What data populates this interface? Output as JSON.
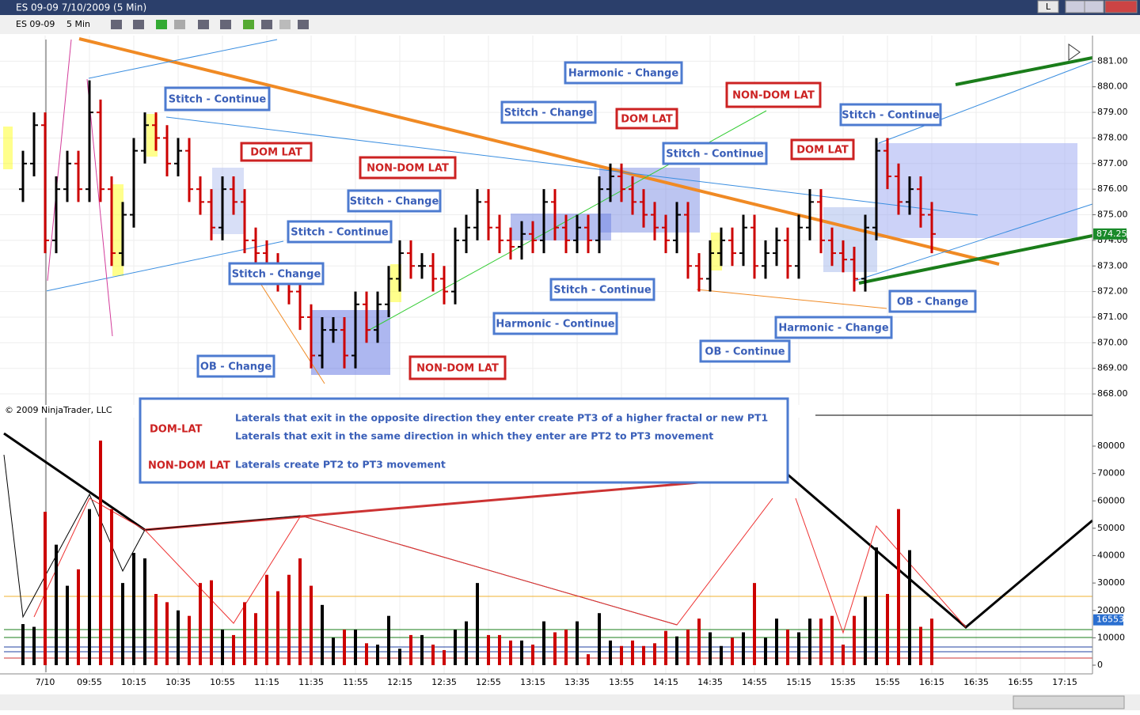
{
  "window": {
    "title": "ES 09-09  7/10/2009 (5 Min)",
    "button": "L"
  },
  "toolbar": {
    "instrument": "ES 09-09",
    "interval": "5 Min"
  },
  "copyright": "© 2009 NinjaTrader, LLC",
  "chart_data": [
    {
      "type": "ohlc",
      "up_color": "#000000",
      "down_color": "#cc0000",
      "ylim": [
        867.6,
        882
      ],
      "yticks": [
        {
          "value": 881,
          "label": "881.00"
        },
        {
          "value": 880,
          "label": "880.00"
        },
        {
          "value": 879,
          "label": "879.00"
        },
        {
          "value": 878,
          "label": "878.00"
        },
        {
          "value": 877,
          "label": "877.00"
        },
        {
          "value": 876,
          "label": "876.00"
        },
        {
          "value": 875,
          "label": "875.00"
        },
        {
          "value": 874,
          "label": "874.00"
        },
        {
          "value": 873,
          "label": "873.00"
        },
        {
          "value": 872,
          "label": "872.00"
        },
        {
          "value": 871,
          "label": "871.00"
        },
        {
          "value": 870,
          "label": "870.00"
        },
        {
          "value": 869,
          "label": "869.00"
        },
        {
          "value": 868,
          "label": "868.00"
        }
      ],
      "last_value": 874.25,
      "ohlc": [
        [
          876,
          877.5,
          875.5,
          877
        ],
        [
          877,
          879,
          876.5,
          878.5
        ],
        [
          878.5,
          879,
          873.5,
          874
        ],
        [
          874,
          876.5,
          873.5,
          876
        ],
        [
          876,
          877.5,
          875.5,
          877
        ],
        [
          877,
          877.5,
          875.5,
          876
        ],
        [
          876,
          880.25,
          875.5,
          879
        ],
        [
          879,
          879.5,
          875.5,
          876
        ],
        [
          876,
          876.5,
          873,
          873.5
        ],
        [
          873.5,
          875.5,
          873,
          875
        ],
        [
          875,
          878,
          874.5,
          877.5
        ],
        [
          877.5,
          879,
          877,
          878.5
        ],
        [
          878.5,
          879,
          877.5,
          878
        ],
        [
          878,
          878.5,
          876.5,
          877
        ],
        [
          877,
          878,
          876.5,
          877.5
        ],
        [
          877.5,
          878,
          875.5,
          876
        ],
        [
          876,
          876.5,
          875,
          875.5
        ],
        [
          875.5,
          876,
          874,
          874.5
        ],
        [
          874.5,
          876.5,
          874,
          876
        ],
        [
          876,
          876.5,
          875,
          875.5
        ],
        [
          875.5,
          876,
          873.5,
          874
        ],
        [
          874,
          874.5,
          873,
          873.5
        ],
        [
          873.5,
          874,
          872.5,
          873
        ],
        [
          873,
          873.5,
          872,
          872.5
        ],
        [
          872.5,
          873,
          871.5,
          872
        ],
        [
          872,
          872.5,
          870.5,
          871
        ],
        [
          871,
          871.5,
          869,
          869.5
        ],
        [
          869.5,
          871,
          869,
          870.5
        ],
        [
          870.5,
          871,
          870,
          870.5
        ],
        [
          870.5,
          871,
          869,
          869.5
        ],
        [
          869.5,
          872,
          869,
          871.5
        ],
        [
          871.5,
          872,
          870,
          870.5
        ],
        [
          870.5,
          872,
          870,
          871.5
        ],
        [
          871.5,
          873,
          871,
          872.5
        ],
        [
          872.5,
          874,
          872,
          873.5
        ],
        [
          873.5,
          874,
          872.5,
          873
        ],
        [
          873,
          873.5,
          872.5,
          873
        ],
        [
          873,
          873.5,
          872,
          872.5
        ],
        [
          872.5,
          873,
          871.5,
          872
        ],
        [
          872,
          874.5,
          871.5,
          874
        ],
        [
          874,
          875,
          873.5,
          874.5
        ],
        [
          874.5,
          876,
          874,
          875.5
        ],
        [
          875.5,
          876,
          874,
          874.5
        ],
        [
          874.5,
          875,
          873.5,
          874
        ],
        [
          874,
          874.5,
          873.25,
          873.75
        ],
        [
          873.75,
          874.75,
          873.25,
          874.25
        ],
        [
          874.25,
          874.75,
          873.5,
          874
        ],
        [
          874,
          876,
          873.5,
          875.5
        ],
        [
          875.5,
          876,
          874,
          874.5
        ],
        [
          874.5,
          875,
          873.5,
          874
        ],
        [
          874,
          875,
          873.5,
          874.5
        ],
        [
          874.5,
          875,
          873.5,
          874
        ],
        [
          874,
          876.5,
          873.5,
          876
        ],
        [
          876,
          877,
          875.5,
          876.5
        ],
        [
          876.5,
          877,
          875.5,
          876
        ],
        [
          876,
          876.5,
          875,
          875.5
        ],
        [
          875.5,
          876,
          874.5,
          875
        ],
        [
          875,
          875.5,
          874,
          874.5
        ],
        [
          874.5,
          875,
          873.5,
          874
        ],
        [
          874,
          875.5,
          873.5,
          875
        ],
        [
          875,
          875.5,
          872.5,
          873
        ],
        [
          873,
          873.5,
          872,
          872.5
        ],
        [
          872.5,
          874,
          872,
          873.5
        ],
        [
          873.5,
          874.5,
          873,
          874
        ],
        [
          874,
          874.5,
          873,
          873.5
        ],
        [
          873.5,
          875,
          873,
          874.5
        ],
        [
          874.5,
          875,
          872.5,
          873
        ],
        [
          873,
          874,
          872.5,
          873.5
        ],
        [
          873.5,
          874.5,
          873,
          874
        ],
        [
          874,
          874.5,
          872.5,
          873
        ],
        [
          873,
          875,
          872.5,
          874.5
        ],
        [
          874.5,
          876,
          874,
          875.5
        ],
        [
          875.5,
          876,
          873.5,
          874
        ],
        [
          874,
          874.5,
          873,
          873.5
        ],
        [
          873.5,
          874,
          872.75,
          873.25
        ],
        [
          873.25,
          873.75,
          872,
          872.5
        ],
        [
          872.5,
          875,
          872,
          874.5
        ],
        [
          874.5,
          878,
          874,
          877.5
        ],
        [
          877.5,
          878,
          876,
          876.5
        ],
        [
          876.5,
          877,
          875,
          875.5
        ],
        [
          875.5,
          876.5,
          875,
          876
        ],
        [
          876,
          876.5,
          874.5,
          875
        ],
        [
          875,
          875.5,
          873.5,
          874.25
        ]
      ]
    },
    {
      "type": "bar",
      "ylim": [
        0,
        90000
      ],
      "yticks": [
        0,
        10000,
        20000,
        30000,
        40000,
        50000,
        60000,
        70000,
        80000
      ],
      "last_value": 16553,
      "values": [
        15000,
        14000,
        56000,
        44000,
        29000,
        35000,
        57000,
        82000,
        57000,
        30000,
        41000,
        39000,
        26000,
        23000,
        20000,
        18000,
        30000,
        31000,
        13000,
        11000,
        23000,
        19000,
        33000,
        27000,
        33000,
        39000,
        29000,
        22000,
        10000,
        13000,
        13000,
        8000,
        7500,
        18000,
        6000,
        11000,
        11000,
        7500,
        5500,
        13000,
        16000,
        30000,
        11000,
        11000,
        9000,
        9000,
        7500,
        16000,
        12000,
        13000,
        16000,
        4000,
        19000,
        9000,
        7000,
        9000,
        7000,
        8000,
        12500,
        10500,
        13000,
        17000,
        12000,
        7000,
        10000,
        12000,
        30000,
        10000,
        17000,
        13000,
        12000,
        17000,
        17000,
        18000,
        7500,
        18000,
        25000,
        43000,
        26000,
        57000,
        42000,
        14000,
        17000
      ]
    }
  ],
  "time_labels": [
    "7/10",
    "09:55",
    "10:15",
    "10:35",
    "10:55",
    "11:15",
    "11:35",
    "11:55",
    "12:15",
    "12:35",
    "12:55",
    "13:15",
    "13:35",
    "13:55",
    "14:15",
    "14:35",
    "14:55",
    "15:15",
    "15:35",
    "15:55",
    "16:15",
    "16:35",
    "16:55",
    "17:15"
  ],
  "annotations": [
    {
      "text": "Stitch - Continue",
      "kind": "blue"
    },
    {
      "text": "DOM LAT",
      "kind": "red"
    },
    {
      "text": "NON-DOM LAT",
      "kind": "red"
    },
    {
      "text": "Stitch - Change",
      "kind": "blue"
    },
    {
      "text": "Stitch - Continue",
      "kind": "blue"
    },
    {
      "text": "Stitch - Change",
      "kind": "blue"
    },
    {
      "text": "OB - Change",
      "kind": "blue"
    },
    {
      "text": "NON-DOM LAT",
      "kind": "red"
    },
    {
      "text": "Stitch - Change",
      "kind": "blue"
    },
    {
      "text": "Harmonic - Change",
      "kind": "blue"
    },
    {
      "text": "DOM LAT",
      "kind": "red"
    },
    {
      "text": "Harmonic - Continue",
      "kind": "blue"
    },
    {
      "text": "Stitch - Continue",
      "kind": "blue"
    },
    {
      "text": "NON-DOM LAT",
      "kind": "red"
    },
    {
      "text": "Stitch - Continue",
      "kind": "blue"
    },
    {
      "text": "DOM LAT",
      "kind": "red"
    },
    {
      "text": "Stitch - Continue",
      "kind": "blue"
    },
    {
      "text": "OB - Change",
      "kind": "blue"
    },
    {
      "text": "Harmonic - Change",
      "kind": "blue"
    },
    {
      "text": "OB - Continue",
      "kind": "blue"
    }
  ],
  "legend_box": {
    "dom_label": "DOM-LAT",
    "dom_line1": "Laterals that exit in the opposite direction they enter create PT3 of a higher fractal or  new PT1",
    "dom_line2": "Laterals that exit in the same direction in which they enter are  PT2 to PT3 movement",
    "nondom_label": "NON-DOM LAT",
    "nondom_line": "Laterals create PT2 to PT3 movement"
  }
}
